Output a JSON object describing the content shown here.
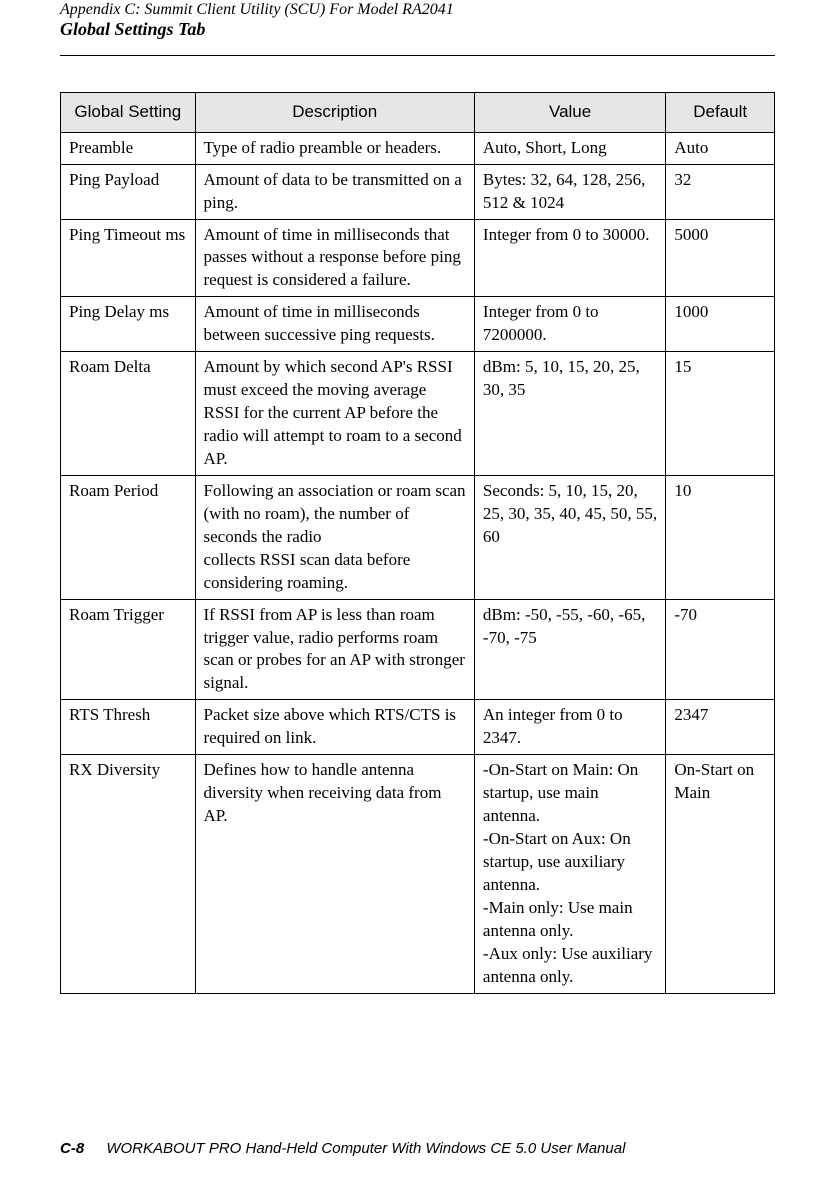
{
  "header": {
    "appendix": "Appendix  C:  Summit Client Utility (SCU) For Model RA2041",
    "section": "Global Settings Tab"
  },
  "table": {
    "columns": [
      "Global  Setting",
      "Description",
      "Value",
      "Default"
    ],
    "rows": [
      {
        "setting": "Preamble",
        "description": "Type of radio preamble or headers.",
        "value": "Auto, Short, Long",
        "default": "Auto"
      },
      {
        "setting": "Ping Payload",
        "description": "Amount of data to be transmitted on a ping.",
        "value": "Bytes: 32, 64, 128, 256, 512 & 1024",
        "default": "32"
      },
      {
        "setting": "Ping Timeout ms",
        "description": "Amount of time in milliseconds that passes without a response before ping request is considered a failure.",
        "value": "Integer from 0 to 30000.",
        "default": "5000"
      },
      {
        "setting": "Ping Delay ms",
        "description": "Amount of time in milliseconds between successive ping requests.",
        "value": "Integer from 0 to 7200000.",
        "default": "1000"
      },
      {
        "setting": "Roam Delta",
        "description": "Amount by which second AP's RSSI must exceed the moving average RSSI for the current AP before the radio will attempt to roam to a second AP.",
        "value": "dBm: 5, 10, 15, 20, 25, 30, 35",
        "default": "15"
      },
      {
        "setting": "Roam Period",
        "description": "Following an association or roam scan (with no roam), the number of seconds the radio\ncollects RSSI scan data before considering roaming.",
        "value": "Seconds: 5, 10, 15, 20, 25, 30, 35, 40, 45, 50, 55, 60",
        "default": "10"
      },
      {
        "setting": "Roam Trigger",
        "description": "If RSSI from AP is less than roam trigger value, radio performs roam scan or probes for an AP with stronger signal.",
        "value": "dBm: -50, -55, -60, -65, -70, -75",
        "default": "-70"
      },
      {
        "setting": "RTS Thresh",
        "description": "Packet size above which RTS/CTS is required on link.",
        "value": "An integer from 0 to 2347.",
        "default": "2347"
      },
      {
        "setting": "RX Diversity",
        "description": "Defines how to handle antenna diversity when receiving data from AP.",
        "value": "-On-Start on Main: On startup, use main antenna.\n-On-Start on Aux: On startup, use auxiliary antenna.\n-Main only: Use main antenna only.\n-Aux only: Use auxiliary antenna only.",
        "default": "On-Start on Main"
      }
    ]
  },
  "footer": {
    "page": "C-8",
    "title": "WORKABOUT PRO Hand-Held Computer With Windows CE 5.0 User Manual"
  }
}
